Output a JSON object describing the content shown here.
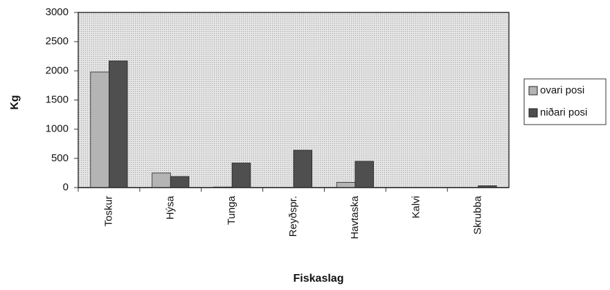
{
  "chart_data": {
    "type": "bar",
    "xlabel": "Fiskaslag",
    "ylabel": "Kg",
    "categories": [
      "Toskur",
      "Hýsa",
      "Tunga",
      "Reyðspr.",
      "Havtaska",
      "Kalvi",
      "Skrubba"
    ],
    "series": [
      {
        "name": "ovari posi",
        "color": "#b4b4b4",
        "values": [
          1980,
          250,
          10,
          0,
          90,
          0,
          0
        ]
      },
      {
        "name": "niðari posi",
        "color": "#4f4f4f",
        "values": [
          2170,
          190,
          420,
          640,
          450,
          0,
          30
        ]
      }
    ],
    "ylim": [
      0,
      3000
    ],
    "yticks": [
      0,
      500,
      1000,
      1500,
      2000,
      2500,
      3000
    ],
    "legend": "right"
  }
}
